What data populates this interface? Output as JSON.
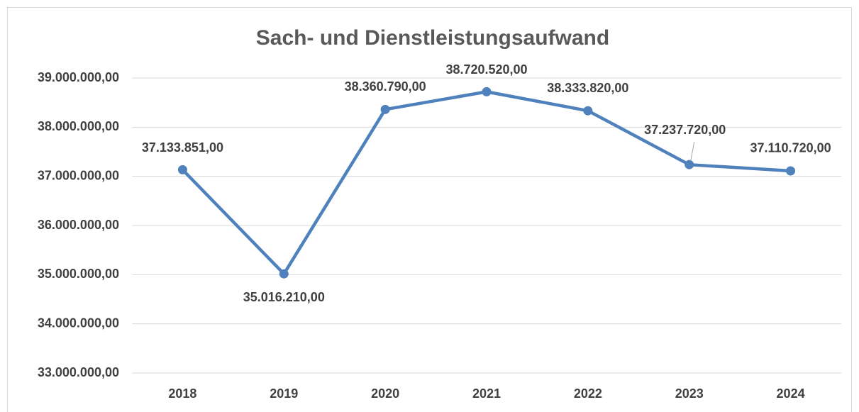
{
  "chart_data": {
    "type": "line",
    "title": "Sach- und Dienstleistungsaufwand",
    "categories": [
      "2018",
      "2019",
      "2020",
      "2021",
      "2022",
      "2023",
      "2024"
    ],
    "series": [
      {
        "name": "Sach- und Dienstleistungsaufwand",
        "color": "#4f81bd",
        "values": [
          37133851,
          35016210,
          38360790,
          38720520,
          38333820,
          37237720,
          37110720
        ],
        "value_labels": [
          "37.133.851,00",
          "35.016.210,00",
          "38.360.790,00",
          "38.720.520,00",
          "38.333.820,00",
          "37.237.720,00",
          "37.110.720,00"
        ]
      }
    ],
    "ylim": [
      33000000,
      39000000
    ],
    "yticks": [
      {
        "value": 33000000,
        "label": "33.000.000,00"
      },
      {
        "value": 34000000,
        "label": "34.000.000,00"
      },
      {
        "value": 35000000,
        "label": "35.000.000,00"
      },
      {
        "value": 36000000,
        "label": "36.000.000,00"
      },
      {
        "value": 37000000,
        "label": "37.000.000,00"
      },
      {
        "value": 38000000,
        "label": "38.000.000,00"
      },
      {
        "value": 39000000,
        "label": "39.000.000,00"
      }
    ],
    "grid": true
  }
}
